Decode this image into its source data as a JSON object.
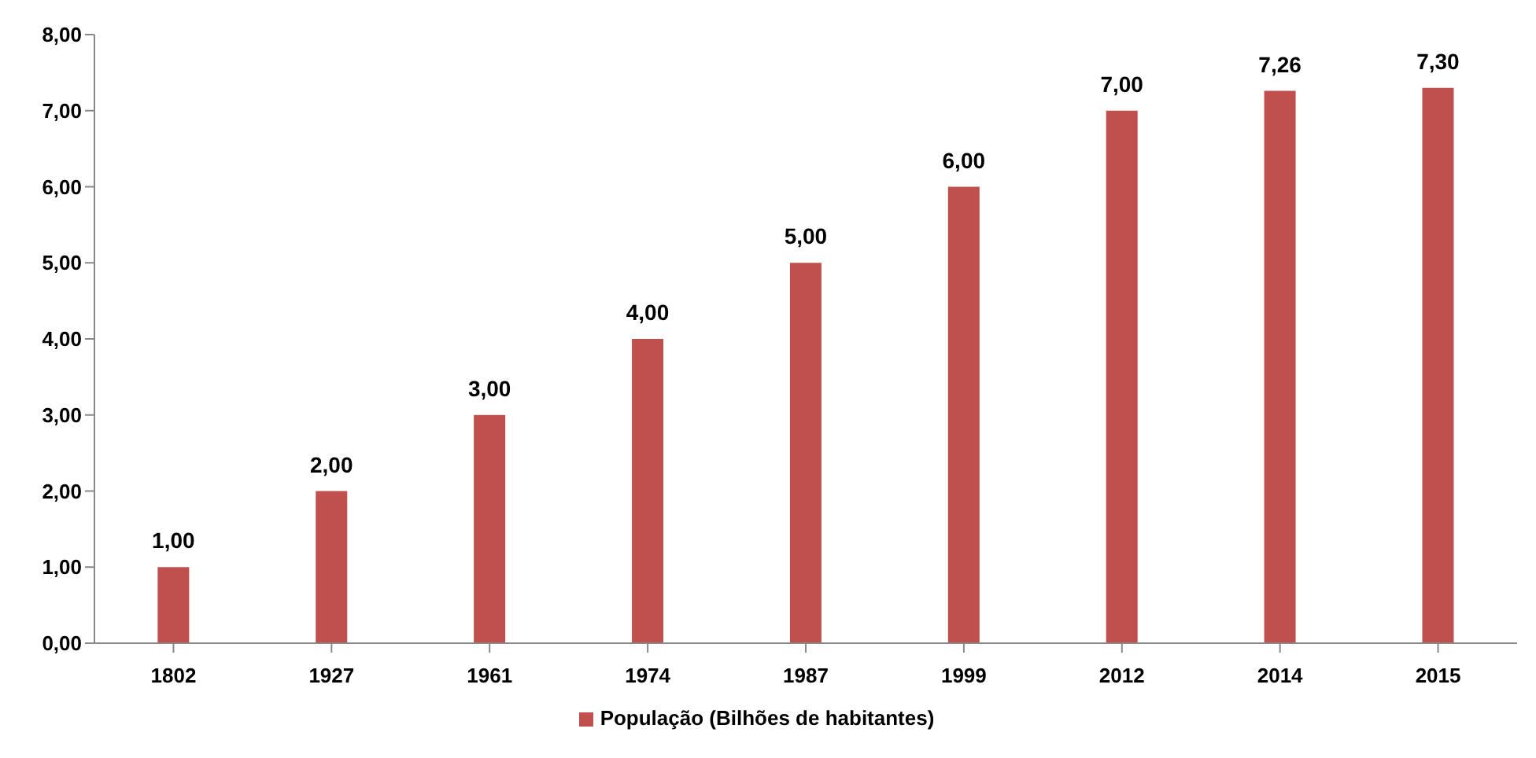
{
  "chart_data": {
    "type": "bar",
    "categories": [
      "1802",
      "1927",
      "1961",
      "1974",
      "1987",
      "1999",
      "2012",
      "2014",
      "2015"
    ],
    "series": [
      {
        "name": "População (Bilhões de habitantes)",
        "color": "#c0504d",
        "values": [
          1,
          2,
          3,
          4,
          5,
          6,
          7,
          7.26,
          7.3
        ],
        "value_labels": [
          "1,00",
          "2,00",
          "3,00",
          "4,00",
          "5,00",
          "6,00",
          "7,00",
          "7,26",
          "7,30"
        ]
      }
    ],
    "ylim": [
      0,
      8
    ],
    "yticks": [
      {
        "value": 0,
        "label": "0,00"
      },
      {
        "value": 1,
        "label": "1,00"
      },
      {
        "value": 2,
        "label": "2,00"
      },
      {
        "value": 3,
        "label": "3,00"
      },
      {
        "value": 4,
        "label": "4,00"
      },
      {
        "value": 5,
        "label": "5,00"
      },
      {
        "value": 6,
        "label": "6,00"
      },
      {
        "value": 7,
        "label": "7,00"
      },
      {
        "value": 8,
        "label": "8,00"
      }
    ],
    "grid": false,
    "legend": "bottom"
  }
}
